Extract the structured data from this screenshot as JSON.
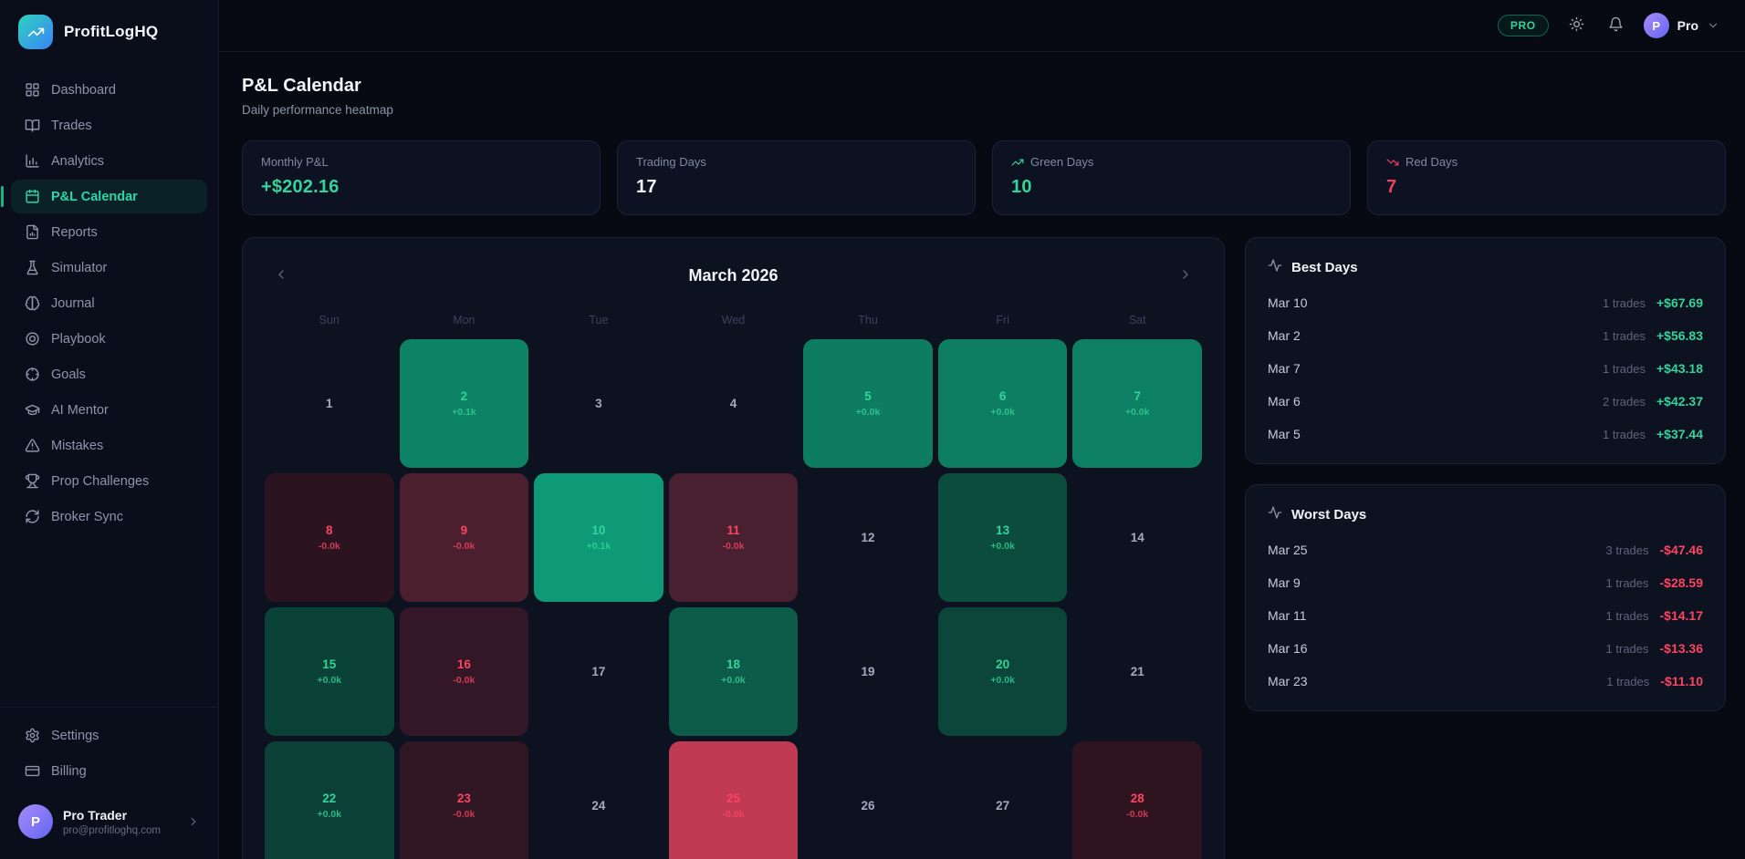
{
  "brand": {
    "name": "ProfitLogHQ",
    "logo_icon": "trending-up-icon"
  },
  "sidebar": {
    "items": [
      {
        "label": "Dashboard",
        "icon": "grid-icon",
        "active": false
      },
      {
        "label": "Trades",
        "icon": "book-open-icon",
        "active": false
      },
      {
        "label": "Analytics",
        "icon": "bar-chart-icon",
        "active": false
      },
      {
        "label": "P&L Calendar",
        "icon": "calendar-icon",
        "active": true
      },
      {
        "label": "Reports",
        "icon": "file-chart-icon",
        "active": false
      },
      {
        "label": "Simulator",
        "icon": "flask-icon",
        "active": false
      },
      {
        "label": "Journal",
        "icon": "brain-icon",
        "active": false
      },
      {
        "label": "Playbook",
        "icon": "target-icon",
        "active": false
      },
      {
        "label": "Goals",
        "icon": "crosshair-icon",
        "active": false
      },
      {
        "label": "AI Mentor",
        "icon": "graduation-cap-icon",
        "active": false
      },
      {
        "label": "Mistakes",
        "icon": "alert-triangle-icon",
        "active": false
      },
      {
        "label": "Prop Challenges",
        "icon": "trophy-icon",
        "active": false
      },
      {
        "label": "Broker Sync",
        "icon": "refresh-icon",
        "active": false
      }
    ],
    "footer_items": [
      {
        "label": "Settings",
        "icon": "gear-icon",
        "active": false
      },
      {
        "label": "Billing",
        "icon": "credit-card-icon",
        "active": false
      }
    ],
    "profile": {
      "initial": "P",
      "name": "Pro Trader",
      "email": "pro@profitloghq.com"
    }
  },
  "topbar": {
    "pro_badge": "PRO",
    "user": {
      "initial": "P",
      "name": "Pro"
    }
  },
  "header": {
    "title": "P&L Calendar",
    "subtitle": "Daily performance heatmap"
  },
  "stats": [
    {
      "label": "Monthly P&L",
      "value": "+$202.16",
      "color": "#34d399",
      "icon": null,
      "icon_color": null
    },
    {
      "label": "Trading Days",
      "value": "17",
      "color": "#f2f5f9",
      "icon": null,
      "icon_color": null
    },
    {
      "label": "Green Days",
      "value": "10",
      "color": "#34d399",
      "icon": "trending-up-icon",
      "icon_color": "#34d399"
    },
    {
      "label": "Red Days",
      "value": "7",
      "color": "#f43f5e",
      "icon": "trending-down-icon",
      "icon_color": "#f43f5e"
    }
  ],
  "calendar": {
    "title": "March 2026",
    "weekdays": [
      "Sun",
      "Mon",
      "Tue",
      "Wed",
      "Thu",
      "Fri",
      "Sat"
    ],
    "days": [
      {
        "day": 1,
        "kind": "flat",
        "pnl": null,
        "bg": null
      },
      {
        "day": 2,
        "kind": "profit",
        "pnl": "+0.1k",
        "bg": "#0d8265"
      },
      {
        "day": 3,
        "kind": "flat",
        "pnl": null,
        "bg": null
      },
      {
        "day": 4,
        "kind": "flat",
        "pnl": null,
        "bg": null
      },
      {
        "day": 5,
        "kind": "profit",
        "pnl": "+0.0k",
        "bg": "#0d7c61"
      },
      {
        "day": 6,
        "kind": "profit",
        "pnl": "+0.0k",
        "bg": "#0d7e62"
      },
      {
        "day": 7,
        "kind": "profit",
        "pnl": "+0.0k",
        "bg": "#0d7f63"
      },
      {
        "day": 8,
        "kind": "loss",
        "pnl": "-0.0k",
        "bg": "#2b141f"
      },
      {
        "day": 9,
        "kind": "loss",
        "pnl": "-0.0k",
        "bg": "#4b1f2e"
      },
      {
        "day": 10,
        "kind": "profit",
        "pnl": "+0.1k",
        "bg": "#0f9a77"
      },
      {
        "day": 11,
        "kind": "loss",
        "pnl": "-0.0k",
        "bg": "#48202f"
      },
      {
        "day": 12,
        "kind": "flat",
        "pnl": null,
        "bg": null
      },
      {
        "day": 13,
        "kind": "profit",
        "pnl": "+0.0k",
        "bg": "#0c4c3d"
      },
      {
        "day": 14,
        "kind": "flat",
        "pnl": null,
        "bg": null
      },
      {
        "day": 15,
        "kind": "profit",
        "pnl": "+0.0k",
        "bg": "#0b4237"
      },
      {
        "day": 16,
        "kind": "loss",
        "pnl": "-0.0k",
        "bg": "#331726"
      },
      {
        "day": 17,
        "kind": "flat",
        "pnl": null,
        "bg": null
      },
      {
        "day": 18,
        "kind": "profit",
        "pnl": "+0.0k",
        "bg": "#0d5b49"
      },
      {
        "day": 19,
        "kind": "flat",
        "pnl": null,
        "bg": null
      },
      {
        "day": 20,
        "kind": "profit",
        "pnl": "+0.0k",
        "bg": "#0c463a"
      },
      {
        "day": 21,
        "kind": "flat",
        "pnl": null,
        "bg": null
      },
      {
        "day": 22,
        "kind": "profit",
        "pnl": "+0.0k",
        "bg": "#0b4136"
      },
      {
        "day": 23,
        "kind": "loss",
        "pnl": "-0.0k",
        "bg": "#311623"
      },
      {
        "day": 24,
        "kind": "flat",
        "pnl": null,
        "bg": null
      },
      {
        "day": 25,
        "kind": "loss",
        "pnl": "-0.0k",
        "bg": "#c03a52"
      },
      {
        "day": 26,
        "kind": "flat",
        "pnl": null,
        "bg": null
      },
      {
        "day": 27,
        "kind": "flat",
        "pnl": null,
        "bg": null
      },
      {
        "day": 28,
        "kind": "loss",
        "pnl": "-0.0k",
        "bg": "#2f1420"
      }
    ]
  },
  "best_days": {
    "title": "Best Days",
    "icon": "activity-icon",
    "amount_color": "#34d399",
    "rows": [
      {
        "date": "Mar 10",
        "trades": "1 trades",
        "amount": "+$67.69"
      },
      {
        "date": "Mar 2",
        "trades": "1 trades",
        "amount": "+$56.83"
      },
      {
        "date": "Mar 7",
        "trades": "1 trades",
        "amount": "+$43.18"
      },
      {
        "date": "Mar 6",
        "trades": "2 trades",
        "amount": "+$42.37"
      },
      {
        "date": "Mar 5",
        "trades": "1 trades",
        "amount": "+$37.44"
      }
    ]
  },
  "worst_days": {
    "title": "Worst Days",
    "icon": "activity-icon",
    "amount_color": "#fb4460",
    "rows": [
      {
        "date": "Mar 25",
        "trades": "3 trades",
        "amount": "-$47.46"
      },
      {
        "date": "Mar 9",
        "trades": "1 trades",
        "amount": "-$28.59"
      },
      {
        "date": "Mar 11",
        "trades": "1 trades",
        "amount": "-$14.17"
      },
      {
        "date": "Mar 16",
        "trades": "1 trades",
        "amount": "-$13.36"
      },
      {
        "date": "Mar 23",
        "trades": "1 trades",
        "amount": "-$11.10"
      }
    ]
  }
}
